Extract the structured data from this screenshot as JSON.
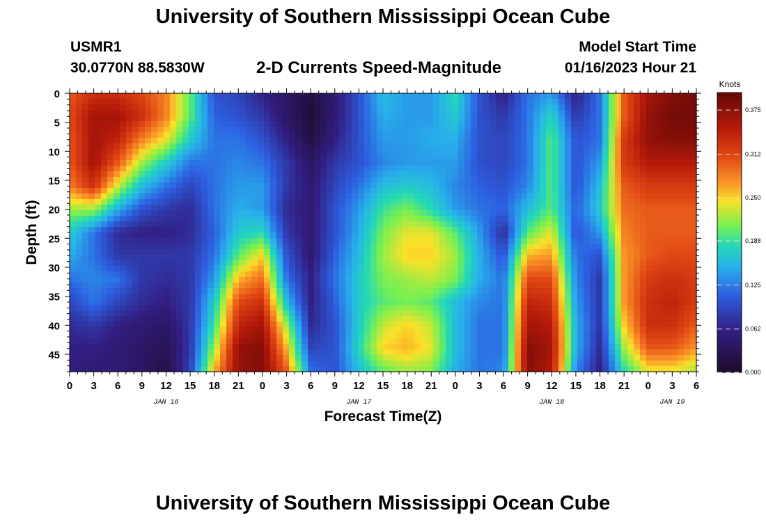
{
  "header": {
    "title": "University of Southern Mississippi Ocean Cube",
    "station_id": "USMR1",
    "coordinates": "30.0770N  88.5830W",
    "subtitle": "2-D Currents Speed-Magnitude",
    "model_start_label": "Model Start Time",
    "model_start_value": "01/16/2023 Hour 21"
  },
  "footer": {
    "title": "University of Southern Mississippi Ocean Cube"
  },
  "chart_data": {
    "type": "heatmap",
    "title": "2-D Currents Speed-Magnitude",
    "xlabel": "Forecast Time(Z)",
    "ylabel": "Depth (ft)",
    "x_ticks": [
      "0",
      "3",
      "6",
      "9",
      "12",
      "15",
      "18",
      "21",
      "0",
      "3",
      "6",
      "9",
      "12",
      "15",
      "18",
      "21",
      "0",
      "3",
      "6",
      "9",
      "12",
      "15",
      "18",
      "21",
      "0",
      "3",
      "6"
    ],
    "x_date_labels": [
      {
        "label": "JAN 16",
        "at_tick": 4
      },
      {
        "label": "JAN 17",
        "at_tick": 12
      },
      {
        "label": "JAN 18",
        "at_tick": 20
      },
      {
        "label": "JAN 19",
        "at_tick": 25
      }
    ],
    "y_ticks": [
      0,
      5,
      10,
      15,
      20,
      25,
      30,
      35,
      40,
      45
    ],
    "ylim": [
      0,
      48
    ],
    "colorbar": {
      "label": "Knots",
      "ticks": [
        "0.000",
        "0.062",
        "0.125",
        "0.188",
        "0.250",
        "0.312",
        "0.375"
      ],
      "range": [
        0,
        0.4
      ]
    },
    "depths_ft": [
      0,
      4,
      8,
      12,
      16,
      20,
      24,
      28,
      32,
      36,
      40,
      44,
      48
    ],
    "time_hours": [
      0,
      3,
      6,
      9,
      12,
      15,
      18,
      21,
      24,
      27,
      30,
      33,
      36,
      39,
      42,
      45,
      48,
      51,
      54,
      57,
      60,
      63,
      66,
      69,
      72,
      75,
      78
    ],
    "speed_knots": [
      [
        0.3,
        0.33,
        0.33,
        0.31,
        0.28,
        0.2,
        0.1,
        0.09,
        0.06,
        0.04,
        0.02,
        0.05,
        0.1,
        0.16,
        0.14,
        0.14,
        0.18,
        0.1,
        0.06,
        0.12,
        0.14,
        0.06,
        0.12,
        0.3,
        0.36,
        0.38,
        0.39
      ],
      [
        0.31,
        0.36,
        0.36,
        0.33,
        0.28,
        0.2,
        0.11,
        0.1,
        0.08,
        0.04,
        0.01,
        0.05,
        0.1,
        0.15,
        0.14,
        0.14,
        0.17,
        0.1,
        0.08,
        0.12,
        0.18,
        0.08,
        0.12,
        0.3,
        0.37,
        0.39,
        0.39
      ],
      [
        0.3,
        0.36,
        0.34,
        0.28,
        0.24,
        0.17,
        0.12,
        0.12,
        0.1,
        0.06,
        0.02,
        0.06,
        0.1,
        0.14,
        0.14,
        0.15,
        0.15,
        0.1,
        0.09,
        0.12,
        0.2,
        0.1,
        0.12,
        0.32,
        0.37,
        0.38,
        0.38
      ],
      [
        0.3,
        0.36,
        0.3,
        0.22,
        0.17,
        0.12,
        0.12,
        0.13,
        0.12,
        0.08,
        0.04,
        0.08,
        0.1,
        0.13,
        0.14,
        0.14,
        0.14,
        0.1,
        0.09,
        0.12,
        0.2,
        0.1,
        0.14,
        0.32,
        0.35,
        0.35,
        0.35
      ],
      [
        0.28,
        0.33,
        0.23,
        0.16,
        0.12,
        0.09,
        0.12,
        0.14,
        0.14,
        0.08,
        0.05,
        0.09,
        0.12,
        0.16,
        0.17,
        0.16,
        0.13,
        0.11,
        0.1,
        0.13,
        0.2,
        0.1,
        0.16,
        0.3,
        0.32,
        0.32,
        0.32
      ],
      [
        0.22,
        0.22,
        0.15,
        0.1,
        0.08,
        0.07,
        0.12,
        0.15,
        0.14,
        0.07,
        0.05,
        0.1,
        0.14,
        0.19,
        0.21,
        0.18,
        0.14,
        0.12,
        0.11,
        0.16,
        0.2,
        0.11,
        0.17,
        0.29,
        0.3,
        0.3,
        0.3
      ],
      [
        0.17,
        0.12,
        0.07,
        0.06,
        0.06,
        0.07,
        0.11,
        0.17,
        0.18,
        0.08,
        0.05,
        0.1,
        0.15,
        0.21,
        0.24,
        0.24,
        0.2,
        0.14,
        0.07,
        0.2,
        0.24,
        0.1,
        0.14,
        0.28,
        0.3,
        0.3,
        0.3
      ],
      [
        0.15,
        0.12,
        0.08,
        0.08,
        0.08,
        0.08,
        0.12,
        0.2,
        0.25,
        0.1,
        0.05,
        0.11,
        0.16,
        0.22,
        0.25,
        0.25,
        0.22,
        0.15,
        0.1,
        0.26,
        0.27,
        0.12,
        0.1,
        0.27,
        0.3,
        0.31,
        0.31
      ],
      [
        0.12,
        0.13,
        0.12,
        0.08,
        0.07,
        0.08,
        0.14,
        0.26,
        0.29,
        0.12,
        0.06,
        0.12,
        0.17,
        0.21,
        0.22,
        0.23,
        0.21,
        0.15,
        0.12,
        0.31,
        0.31,
        0.13,
        0.08,
        0.27,
        0.32,
        0.33,
        0.32
      ],
      [
        0.09,
        0.12,
        0.09,
        0.07,
        0.06,
        0.08,
        0.17,
        0.31,
        0.33,
        0.16,
        0.06,
        0.11,
        0.17,
        0.2,
        0.21,
        0.2,
        0.16,
        0.13,
        0.12,
        0.34,
        0.33,
        0.14,
        0.08,
        0.27,
        0.33,
        0.34,
        0.32
      ],
      [
        0.07,
        0.08,
        0.06,
        0.05,
        0.04,
        0.08,
        0.19,
        0.34,
        0.36,
        0.22,
        0.07,
        0.1,
        0.17,
        0.23,
        0.25,
        0.23,
        0.16,
        0.12,
        0.12,
        0.36,
        0.35,
        0.15,
        0.08,
        0.25,
        0.33,
        0.33,
        0.3
      ],
      [
        0.06,
        0.06,
        0.05,
        0.04,
        0.03,
        0.08,
        0.22,
        0.37,
        0.38,
        0.26,
        0.09,
        0.1,
        0.18,
        0.25,
        0.26,
        0.24,
        0.16,
        0.12,
        0.12,
        0.38,
        0.36,
        0.15,
        0.07,
        0.22,
        0.3,
        0.3,
        0.27
      ],
      [
        0.06,
        0.05,
        0.05,
        0.04,
        0.02,
        0.09,
        0.26,
        0.37,
        0.38,
        0.3,
        0.12,
        0.1,
        0.16,
        0.2,
        0.22,
        0.21,
        0.15,
        0.12,
        0.13,
        0.38,
        0.35,
        0.13,
        0.06,
        0.18,
        0.24,
        0.24,
        0.22
      ]
    ]
  }
}
